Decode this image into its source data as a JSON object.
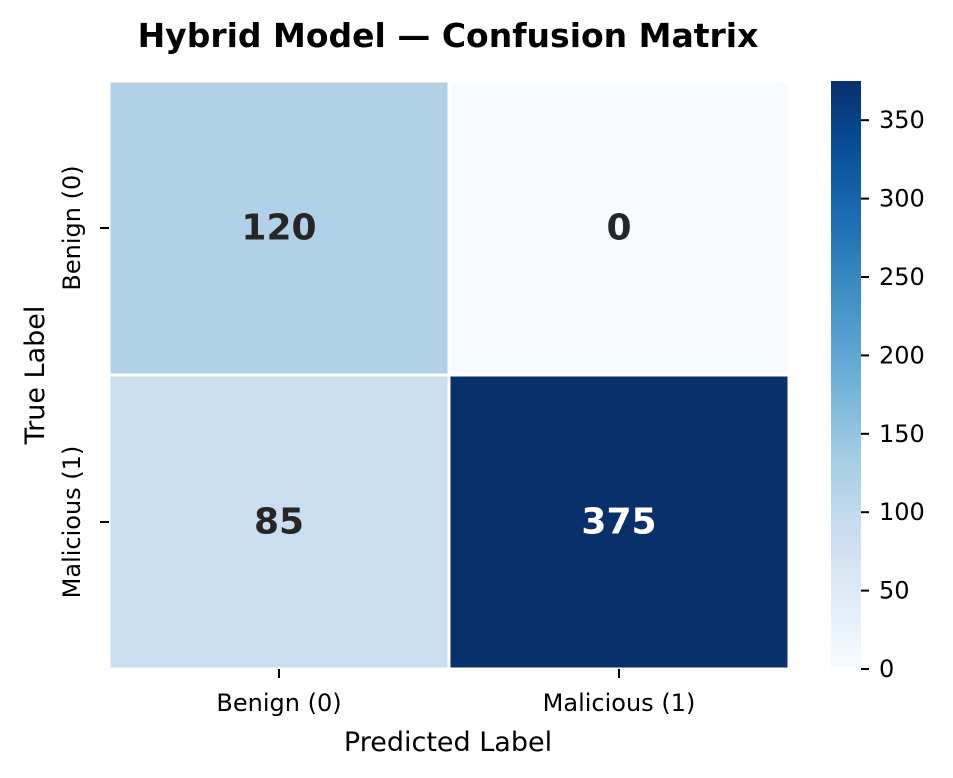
{
  "chart_data": {
    "type": "heatmap",
    "title": "Hybrid Model — Confusion Matrix",
    "xlabel": "Predicted Label",
    "ylabel": "True Label",
    "x_categories": [
      "Benign (0)",
      "Malicious (1)"
    ],
    "y_categories": [
      "Benign (0)",
      "Malicious (1)"
    ],
    "matrix": [
      [
        120,
        0
      ],
      [
        85,
        375
      ]
    ],
    "colormap": "Blues",
    "colorbar": {
      "min": 0,
      "max": 375,
      "ticks": [
        0,
        50,
        100,
        150,
        200,
        250,
        300,
        350
      ]
    },
    "cell_text_colors": {
      "dark": "#262626",
      "light": "#ffffff"
    }
  }
}
